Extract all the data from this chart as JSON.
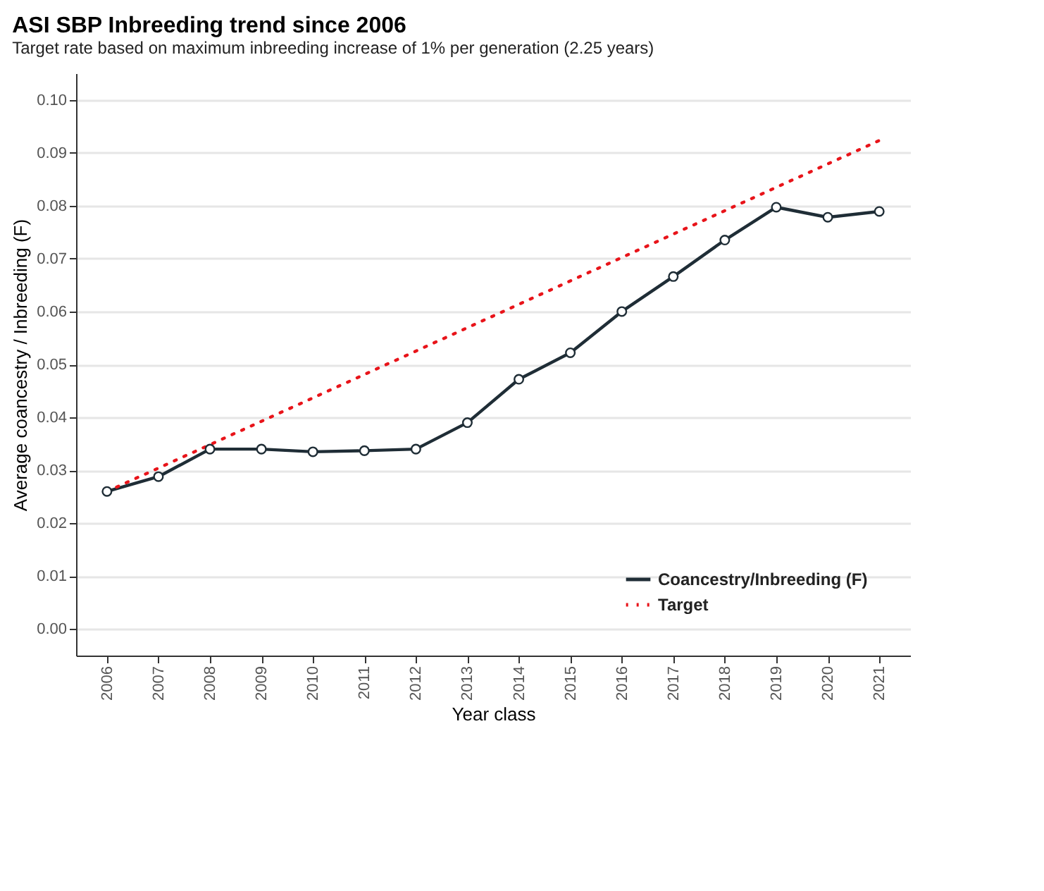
{
  "chart_data": {
    "type": "line",
    "title": "ASI SBP Inbreeding trend since 2006",
    "subtitle": "Target rate based on maximum inbreeding increase of 1% per generation (2.25 years)",
    "xlabel": "Year class",
    "ylabel": "Average coancestry / Inbreeding (F)",
    "x": [
      2006,
      2007,
      2008,
      2009,
      2010,
      2011,
      2012,
      2013,
      2014,
      2015,
      2016,
      2017,
      2018,
      2019,
      2020,
      2021
    ],
    "xlim": [
      2005.4,
      2021.6
    ],
    "xticks": [
      2006,
      2007,
      2008,
      2009,
      2010,
      2011,
      2012,
      2013,
      2014,
      2015,
      2016,
      2017,
      2018,
      2019,
      2020,
      2021
    ],
    "ylim": [
      -0.005,
      0.105
    ],
    "yticks": [
      {
        "value": 0,
        "label": "0.00"
      },
      0.01,
      0.02,
      0.03,
      0.04,
      0.05,
      0.06,
      0.07,
      0.08,
      0.09,
      {
        "value": 0.1,
        "label": "0.10"
      }
    ],
    "series": [
      {
        "name": "Coancestry/Inbreeding (F)",
        "color": "#1f2d36",
        "marker": "circle",
        "line_style": "solid",
        "values": [
          0.026,
          0.0288,
          0.034,
          0.034,
          0.0335,
          0.0337,
          0.034,
          0.039,
          0.0472,
          0.0522,
          0.06,
          0.0666,
          0.0735,
          0.0797,
          0.0778,
          0.0789
        ]
      },
      {
        "name": "Target",
        "color": "#e8141a",
        "marker": "none",
        "line_style": "dotted",
        "x": [
          2006,
          2021
        ],
        "values": [
          0.026,
          0.0923
        ]
      }
    ],
    "grid": "y",
    "legend": "bottom right"
  }
}
